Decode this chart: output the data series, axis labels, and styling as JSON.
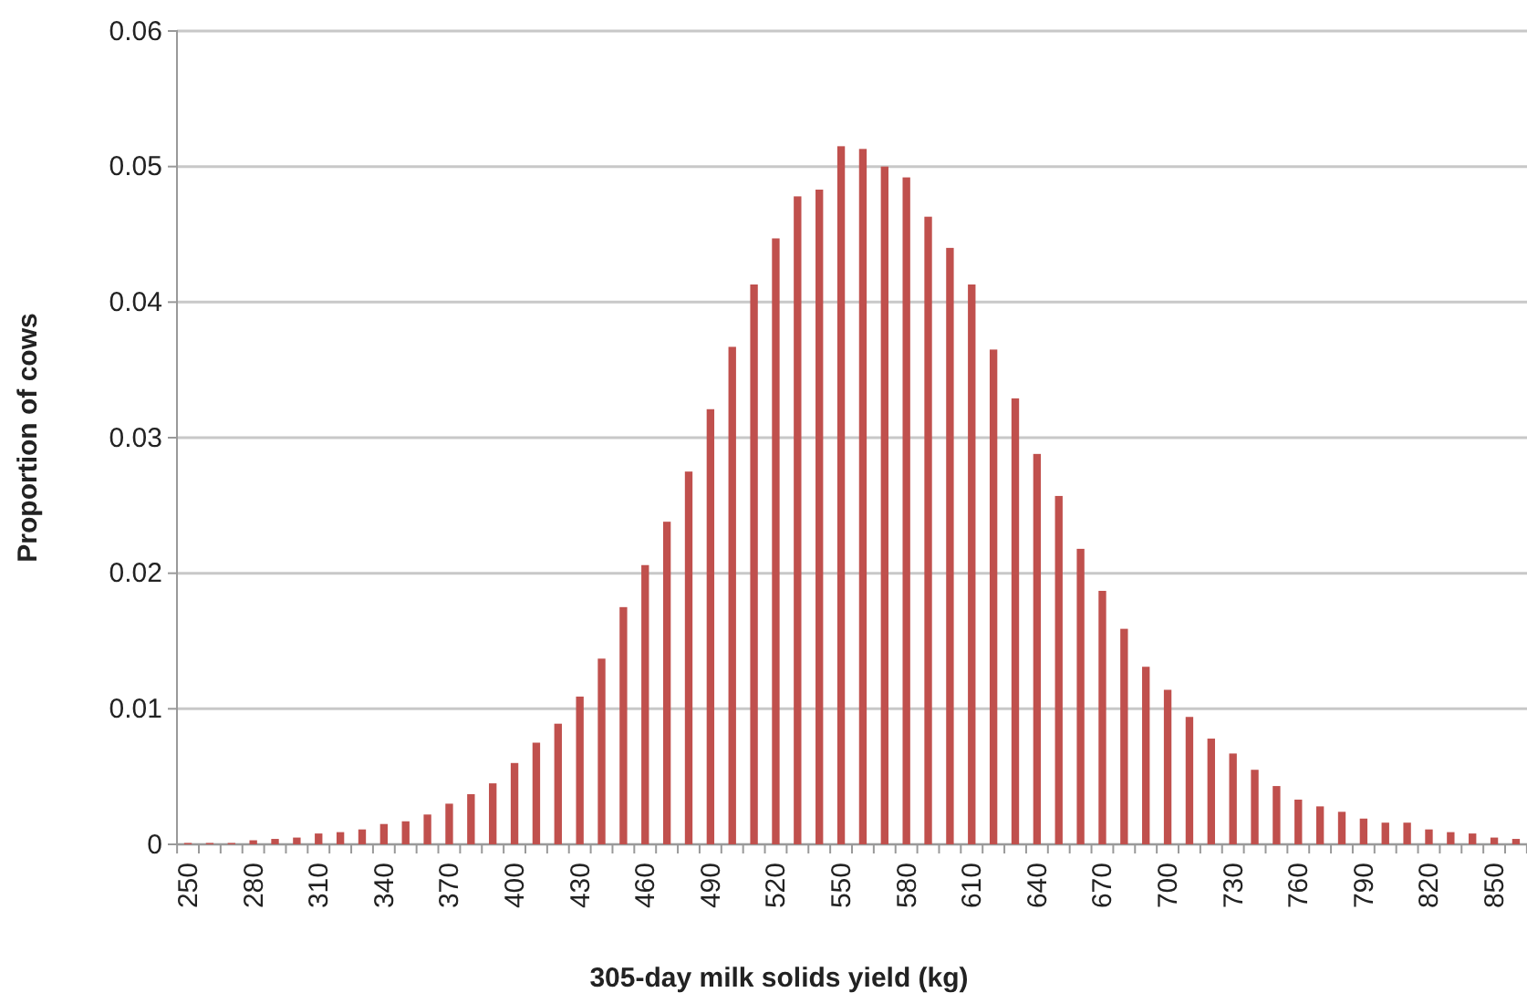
{
  "chart_data": {
    "type": "bar",
    "xlabel": "305-day milk solids yield (kg)",
    "ylabel": "Proportion of cows",
    "categories": [
      "250",
      null,
      null,
      "280",
      null,
      null,
      "310",
      null,
      null,
      "340",
      null,
      null,
      "370",
      null,
      null,
      "400",
      null,
      null,
      "430",
      null,
      null,
      "460",
      null,
      null,
      "490",
      null,
      null,
      "520",
      null,
      null,
      "550",
      null,
      null,
      "580",
      null,
      null,
      "610",
      null,
      null,
      "640",
      null,
      null,
      "670",
      null,
      null,
      "700",
      null,
      null,
      "730",
      null,
      null,
      "760",
      null,
      null,
      "790",
      null,
      null,
      "820",
      null,
      null,
      "850",
      null
    ],
    "values": [
      0.0001,
      0.0001,
      0.0001,
      0.0003,
      0.0004,
      0.0005,
      0.0008,
      0.0009,
      0.0011,
      0.0015,
      0.0017,
      0.0022,
      0.003,
      0.0037,
      0.0045,
      0.006,
      0.0075,
      0.0089,
      0.0109,
      0.0137,
      0.0175,
      0.0206,
      0.0238,
      0.0275,
      0.0321,
      0.0367,
      0.0413,
      0.0447,
      0.0478,
      0.0483,
      0.0515,
      0.0513,
      0.05,
      0.0492,
      0.0463,
      0.044,
      0.0413,
      0.0365,
      0.0329,
      0.0288,
      0.0257,
      0.0218,
      0.0187,
      0.0159,
      0.0131,
      0.0114,
      0.0094,
      0.0078,
      0.0067,
      0.0055,
      0.0043,
      0.0033,
      0.0028,
      0.0024,
      0.0019,
      0.0016,
      0.0016,
      0.0011,
      0.0009,
      0.0008,
      0.0005,
      0.0004
    ],
    "color": "#c0504d",
    "ylim": [
      0,
      0.06
    ],
    "yticks": [
      {
        "value": 0,
        "label": "0"
      },
      {
        "value": 0.01,
        "label": "0.01"
      },
      {
        "value": 0.02,
        "label": "0.02"
      },
      {
        "value": 0.03,
        "label": "0.03"
      },
      {
        "value": 0.04,
        "label": "0.04"
      },
      {
        "value": 0.05,
        "label": "0.05"
      },
      {
        "value": 0.06,
        "label": "0.06"
      }
    ],
    "grid": "y"
  }
}
